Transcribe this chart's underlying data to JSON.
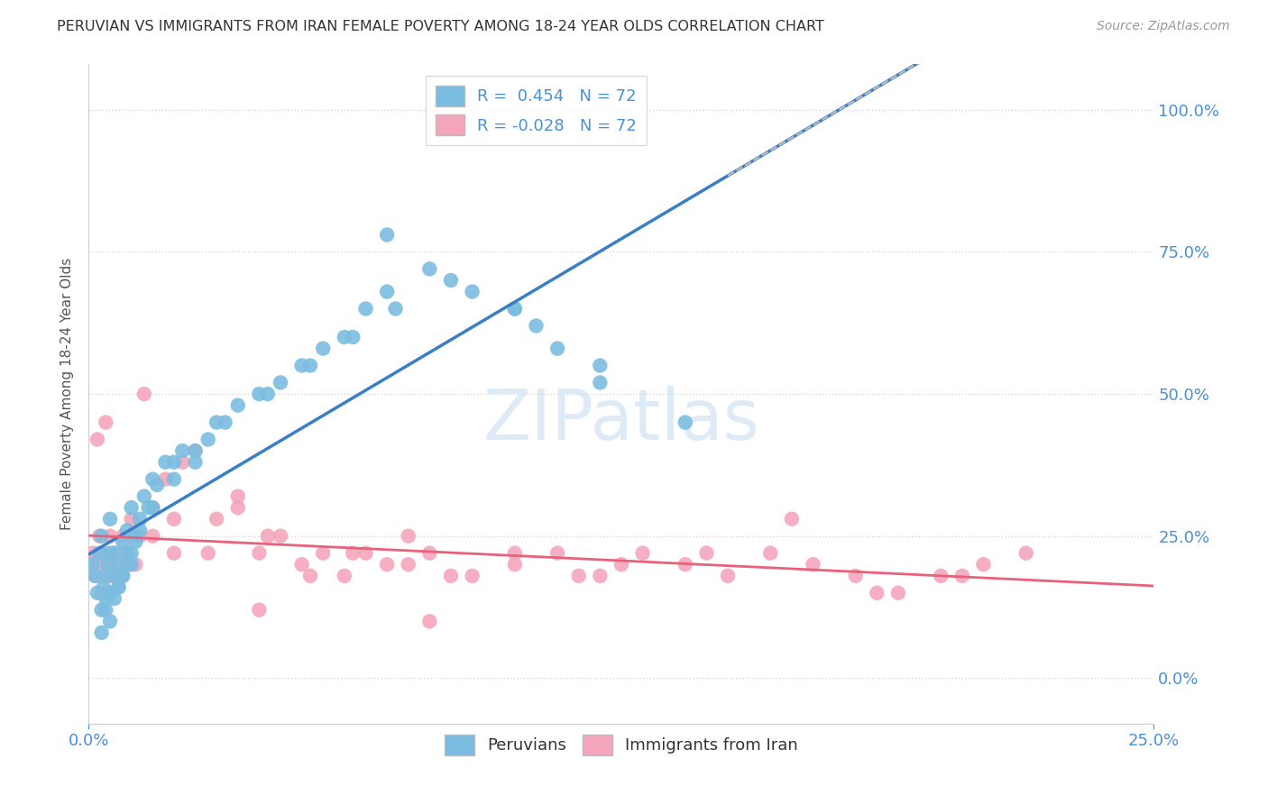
{
  "title": "PERUVIAN VS IMMIGRANTS FROM IRAN FEMALE POVERTY AMONG 18-24 YEAR OLDS CORRELATION CHART",
  "source": "Source: ZipAtlas.com",
  "ylabel": "Female Poverty Among 18-24 Year Olds",
  "yticks_labels": [
    "0.0%",
    "25.0%",
    "50.0%",
    "75.0%",
    "100.0%"
  ],
  "ytick_values": [
    0,
    25,
    50,
    75,
    100
  ],
  "xlim": [
    0,
    25
  ],
  "ylim": [
    -8,
    108
  ],
  "legend_blue_label": "R =  0.454   N = 72",
  "legend_pink_label": "R = -0.028   N = 72",
  "peruvians_label": "Peruvians",
  "iran_label": "Immigrants from Iran",
  "blue_color": "#7bbde0",
  "pink_color": "#f4a5bc",
  "blue_line_color": "#3a7ec6",
  "pink_line_color": "#e8607a",
  "watermark": "ZIPatlas",
  "grid_color": "#d8d8d8",
  "dash_line_color": "#c0c0c0",
  "peruvians_x": [
    0.1,
    0.15,
    0.2,
    0.25,
    0.3,
    0.3,
    0.35,
    0.4,
    0.4,
    0.45,
    0.5,
    0.5,
    0.5,
    0.6,
    0.6,
    0.7,
    0.7,
    0.8,
    0.8,
    0.9,
    0.9,
    1.0,
    1.0,
    1.1,
    1.2,
    1.3,
    1.5,
    1.5,
    1.8,
    2.0,
    2.2,
    2.5,
    2.8,
    3.0,
    3.5,
    4.0,
    4.5,
    5.0,
    5.5,
    6.0,
    6.5,
    7.0,
    7.0,
    8.0,
    9.0,
    10.0,
    10.5,
    11.0,
    12.0,
    14.0,
    0.3,
    0.4,
    0.5,
    0.6,
    0.7,
    0.8,
    0.9,
    1.0,
    1.1,
    1.2,
    1.4,
    1.6,
    2.0,
    2.5,
    3.2,
    4.2,
    5.2,
    6.2,
    7.2,
    8.5,
    10.0,
    12.0
  ],
  "peruvians_y": [
    20,
    18,
    15,
    22,
    12,
    25,
    16,
    18,
    14,
    20,
    22,
    15,
    28,
    18,
    22,
    20,
    16,
    24,
    18,
    22,
    26,
    20,
    30,
    25,
    28,
    32,
    30,
    35,
    38,
    35,
    40,
    38,
    42,
    45,
    48,
    50,
    52,
    55,
    58,
    60,
    65,
    68,
    78,
    72,
    68,
    65,
    62,
    58,
    52,
    45,
    8,
    12,
    10,
    14,
    16,
    18,
    20,
    22,
    24,
    26,
    30,
    34,
    38,
    40,
    45,
    50,
    55,
    60,
    65,
    70,
    65,
    55
  ],
  "iran_x": [
    0.1,
    0.15,
    0.2,
    0.25,
    0.3,
    0.35,
    0.4,
    0.45,
    0.5,
    0.55,
    0.6,
    0.7,
    0.8,
    0.9,
    1.0,
    1.1,
    1.2,
    1.5,
    1.8,
    2.0,
    2.5,
    3.0,
    3.5,
    4.0,
    4.5,
    5.0,
    5.5,
    6.0,
    6.5,
    7.0,
    7.5,
    8.0,
    9.0,
    10.0,
    11.0,
    12.0,
    13.0,
    14.0,
    15.0,
    16.0,
    17.0,
    18.0,
    19.0,
    20.0,
    21.0,
    22.0,
    0.3,
    0.6,
    0.8,
    1.0,
    1.5,
    2.0,
    2.8,
    3.5,
    4.2,
    5.2,
    6.2,
    7.5,
    8.5,
    10.0,
    11.5,
    12.5,
    14.5,
    16.5,
    18.5,
    20.5,
    0.2,
    0.4,
    1.3,
    2.2,
    4.0,
    8.0
  ],
  "iran_y": [
    22,
    18,
    20,
    25,
    18,
    22,
    20,
    15,
    25,
    18,
    22,
    20,
    25,
    22,
    28,
    20,
    25,
    30,
    35,
    22,
    40,
    28,
    32,
    22,
    25,
    20,
    22,
    18,
    22,
    20,
    25,
    22,
    18,
    20,
    22,
    18,
    22,
    20,
    18,
    22,
    20,
    18,
    15,
    18,
    20,
    22,
    15,
    18,
    22,
    20,
    25,
    28,
    22,
    30,
    25,
    18,
    22,
    20,
    18,
    22,
    18,
    20,
    22,
    28,
    15,
    18,
    42,
    45,
    50,
    38,
    12,
    10
  ]
}
